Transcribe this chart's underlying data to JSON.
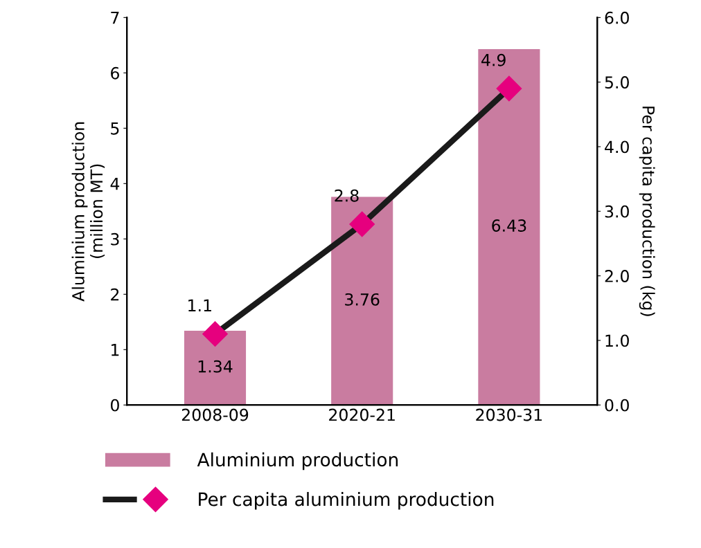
{
  "chart_data": {
    "type": "bar",
    "categories": [
      "2008-09",
      "2020-21",
      "2030-31"
    ],
    "ylabel": "Aluminium production\n(million MT)",
    "y2label": "Per capita production (kg)",
    "ylim": [
      0,
      7
    ],
    "yticks": [
      0,
      1,
      2,
      3,
      4,
      5,
      6,
      7
    ],
    "y2lim": [
      0,
      6
    ],
    "y2ticks": [
      {
        "value": 0,
        "label": "0.0"
      },
      {
        "value": 1,
        "label": "1.0"
      },
      {
        "value": 2,
        "label": "2.0"
      },
      {
        "value": 3,
        "label": "3.0"
      },
      {
        "value": 4,
        "label": "4.0"
      },
      {
        "value": 5,
        "label": "5.0"
      },
      {
        "value": 6,
        "label": "6.0"
      }
    ],
    "series": [
      {
        "name": "Aluminium production",
        "type": "bar",
        "color": "#c97ca0",
        "values": [
          1.34,
          3.76,
          6.43
        ]
      },
      {
        "name": "Per capita aluminium production",
        "type": "line",
        "axis": "y2",
        "color": "#1a1a1a",
        "colors": [
          "#e6007e",
          "#e6007e",
          "#e6007e"
        ],
        "marker": "diamond",
        "values": [
          1.1,
          2.8,
          4.9
        ]
      }
    ],
    "data_labels": true,
    "legend": "bottom",
    "grid": false
  }
}
